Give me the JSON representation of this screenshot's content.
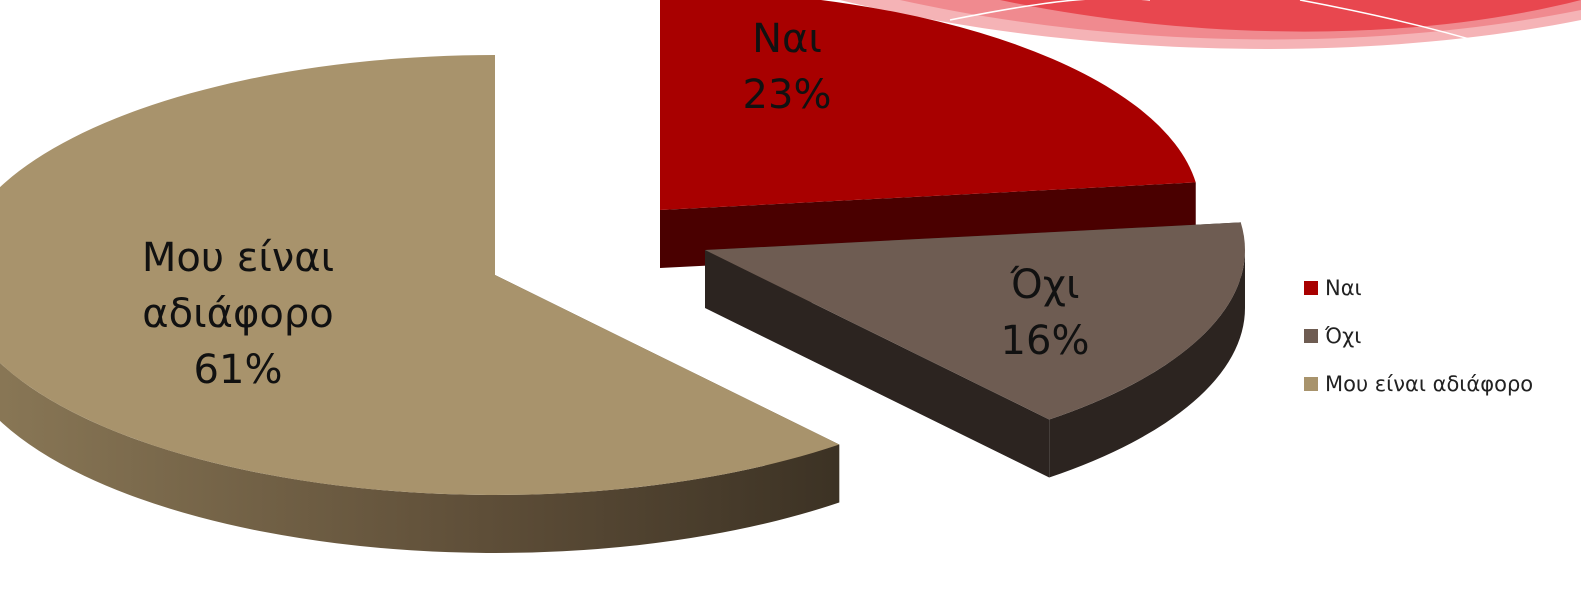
{
  "chart_data": {
    "type": "pie",
    "style": "3d-exploded",
    "slices": [
      {
        "label": "Ναι",
        "value": 23,
        "percent_label": "23%",
        "color": "#a80000",
        "side_color": "#4a0000"
      },
      {
        "label": "Όχι",
        "value": 16,
        "percent_label": "16%",
        "color": "#6e5c52",
        "side_color": "#2c2420"
      },
      {
        "label_lines": [
          "Μου είναι",
          "αδιάφορο"
        ],
        "label": "Μου είναι αδιάφορο",
        "value": 61,
        "percent_label": "61%",
        "color": "#a8936c",
        "side_color": "#5a4a34"
      }
    ],
    "legend": {
      "position": "right",
      "items": [
        {
          "label": "Ναι",
          "color": "#a80000"
        },
        {
          "label": "Όχι",
          "color": "#6e5c52"
        },
        {
          "label": "Μου είναι αδιάφορο",
          "color": "#a8936c"
        }
      ]
    }
  },
  "decoration": {
    "swoosh_colors": [
      "#e8474f",
      "#f08a8f",
      "#f5b3b6"
    ]
  }
}
